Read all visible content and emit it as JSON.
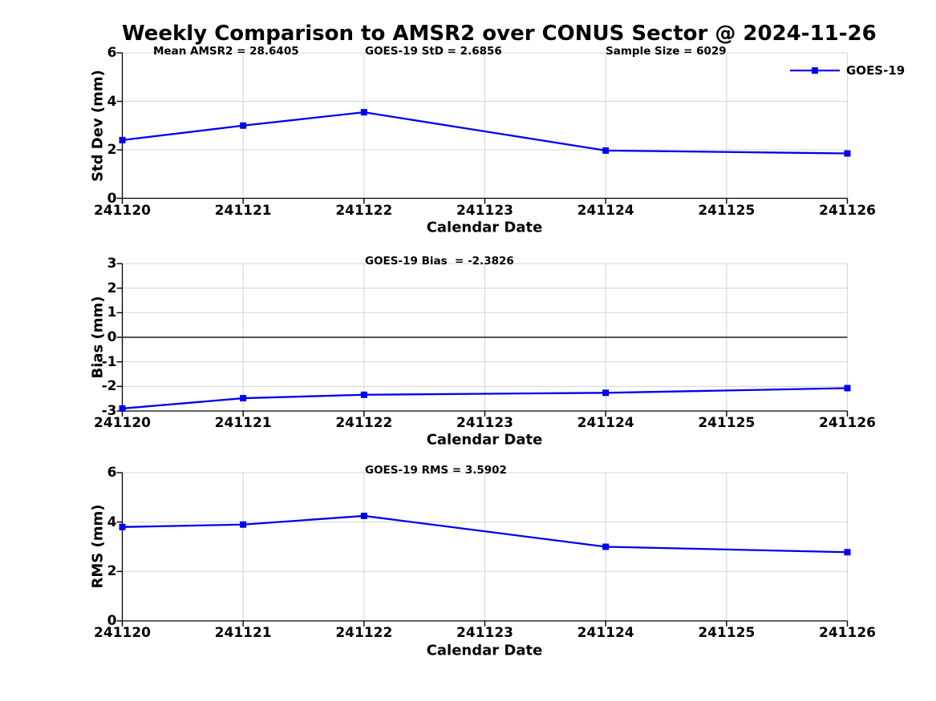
{
  "figure_title": "Weekly Comparison to AMSR2 over CONUS Sector @ 2024-11-26",
  "colors": {
    "series_blue": "#0000ee",
    "grid": "#d4d4d4",
    "spine": "#000000",
    "zero_line": "#3a3a3a",
    "text": "#000000",
    "background": "#ffffff"
  },
  "legend": {
    "label": "GOES-19"
  },
  "chart_data": [
    {
      "type": "line",
      "panel": "std-dev",
      "annotations": [
        "Mean AMSR2 = 28.6405",
        "GOES-19 StD = 2.6856",
        "Sample Size = 6029"
      ],
      "xlabel": "Calendar Date",
      "ylabel": "Std Dev (mm)",
      "x_ticks": [
        "241120",
        "241121",
        "241122",
        "241123",
        "241124",
        "241125",
        "241126"
      ],
      "y_ticks": [
        0,
        2,
        4,
        6
      ],
      "xlim": [
        241120,
        241126
      ],
      "ylim": [
        0,
        6
      ],
      "grid": true,
      "zero_line": false,
      "legend_position": "top-right",
      "series": [
        {
          "name": "GOES-19",
          "color": "#0000ee",
          "marker": "square",
          "x": [
            241120,
            241121,
            241122,
            241124,
            241126
          ],
          "y": [
            2.4,
            3.0,
            3.55,
            1.97,
            1.85
          ]
        }
      ]
    },
    {
      "type": "line",
      "panel": "bias",
      "annotations": [
        "GOES-19 Bias  = -2.3826"
      ],
      "xlabel": "Calendar Date",
      "ylabel": "Bias (mm)",
      "x_ticks": [
        "241120",
        "241121",
        "241122",
        "241123",
        "241124",
        "241125",
        "241126"
      ],
      "y_ticks": [
        -3,
        -2,
        -1,
        0,
        1,
        2,
        3
      ],
      "xlim": [
        241120,
        241126
      ],
      "ylim": [
        -3,
        3
      ],
      "grid": true,
      "zero_line": true,
      "series": [
        {
          "name": "GOES-19",
          "color": "#0000ee",
          "marker": "square",
          "x": [
            241120,
            241121,
            241122,
            241124,
            241126
          ],
          "y": [
            -2.9,
            -2.48,
            -2.34,
            -2.26,
            -2.07
          ]
        }
      ]
    },
    {
      "type": "line",
      "panel": "rms",
      "annotations": [
        "GOES-19 RMS = 3.5902"
      ],
      "xlabel": "Calendar Date",
      "ylabel": "RMS (mm)",
      "x_ticks": [
        "241120",
        "241121",
        "241122",
        "241123",
        "241124",
        "241125",
        "241126"
      ],
      "y_ticks": [
        0,
        2,
        4,
        6
      ],
      "xlim": [
        241120,
        241126
      ],
      "ylim": [
        0,
        6
      ],
      "grid": true,
      "zero_line": false,
      "series": [
        {
          "name": "GOES-19",
          "color": "#0000ee",
          "marker": "square",
          "x": [
            241120,
            241121,
            241122,
            241124,
            241126
          ],
          "y": [
            3.8,
            3.9,
            4.25,
            3.0,
            2.78
          ]
        }
      ]
    }
  ]
}
